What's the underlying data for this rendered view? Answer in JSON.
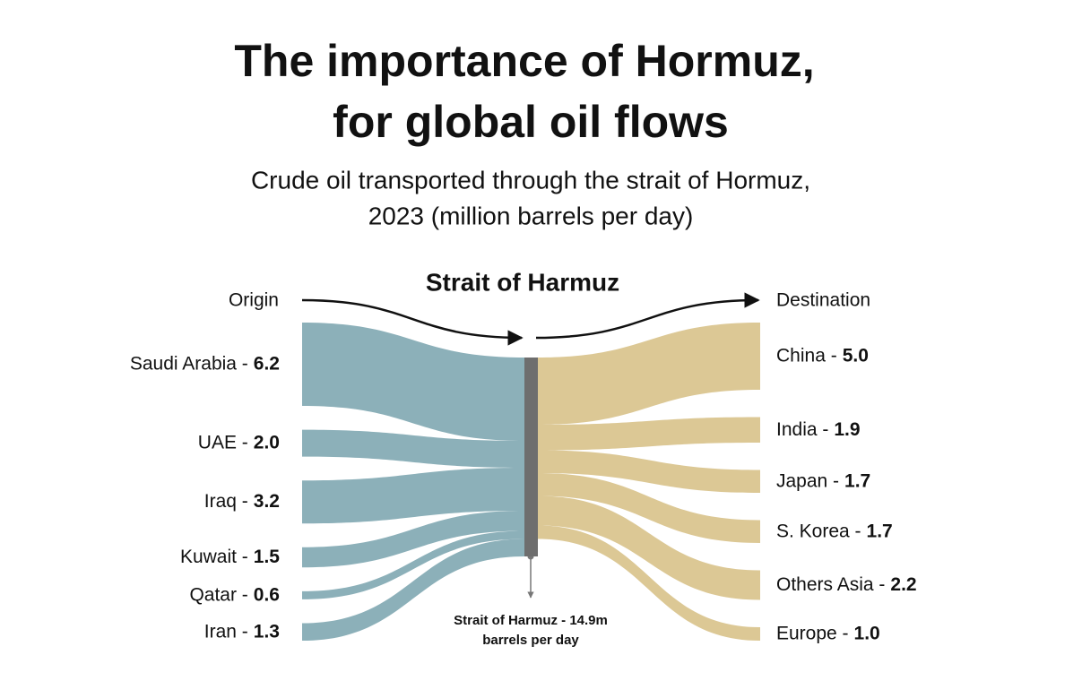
{
  "chart_data": {
    "type": "sankey",
    "title": [
      "The importance of Hormuz,",
      "for global oil flows"
    ],
    "subtitle": [
      "Crude oil transported through the strait of Hormuz,",
      "2023  (million barrels per day)"
    ],
    "origin_label": "Origin",
    "destination_label": "Destination",
    "hub_label": "Strait of Harmuz",
    "hub_note": [
      "Strait of Harmuz - 14.9m",
      "barrels per day"
    ],
    "hub_color": "#6e6e6e",
    "sources": {
      "names": [
        "Saudi Arabia -",
        "UAE -",
        "Iraq -",
        "Kuwait -",
        "Qatar -",
        "Iran -"
      ],
      "values": [
        6.2,
        2.0,
        3.2,
        1.5,
        0.6,
        1.3
      ],
      "value_labels": [
        "6.2",
        "2.0",
        "3.2",
        "1.5",
        "0.6",
        "1.3"
      ],
      "color": "#8cb0b9"
    },
    "destinations": {
      "names": [
        "China -",
        "India -",
        "Japan -",
        "S. Korea -",
        "Others Asia -",
        "Europe -"
      ],
      "values": [
        5.0,
        1.9,
        1.7,
        1.7,
        2.2,
        1.0
      ],
      "value_labels": [
        "5.0",
        "1.9",
        "1.7",
        "1.7",
        "2.2",
        "1.0"
      ],
      "color": "#dcc895"
    }
  }
}
